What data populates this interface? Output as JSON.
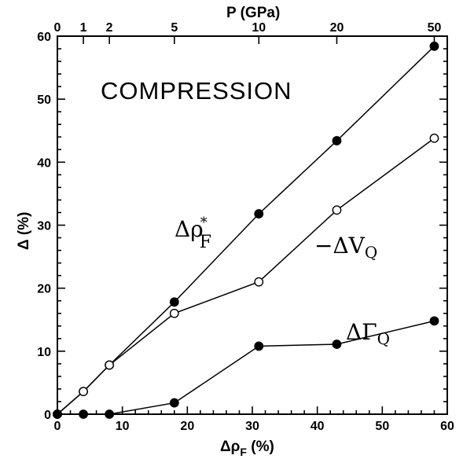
{
  "chart_data": {
    "type": "line",
    "title": "COMPRESSION",
    "xlabel": "Δρ_F (%)",
    "ylabel": "Δ (%)",
    "top_axis_label": "P (GPa)",
    "xlim": [
      0,
      60
    ],
    "ylim": [
      0,
      60
    ],
    "x_ticks": [
      0,
      10,
      20,
      30,
      40,
      50,
      60
    ],
    "y_ticks": [
      0,
      10,
      20,
      30,
      40,
      50,
      60
    ],
    "top_ticks": [
      {
        "label": "0",
        "x": 0
      },
      {
        "label": "1",
        "x": 4
      },
      {
        "label": "2",
        "x": 8
      },
      {
        "label": "5",
        "x": 18
      },
      {
        "label": "10",
        "x": 31
      },
      {
        "label": "20",
        "x": 43
      },
      {
        "label": "50",
        "x": 58
      }
    ],
    "grid": false,
    "series": [
      {
        "name": "Δρ*F",
        "marker": "filled",
        "x": [
          0,
          4,
          8,
          18,
          31,
          43,
          58
        ],
        "y": [
          0,
          3.6,
          7.8,
          17.8,
          31.8,
          43.4,
          58.4
        ]
      },
      {
        "name": "−ΔVQ",
        "marker": "open",
        "x": [
          0,
          4,
          8,
          18,
          31,
          43,
          58
        ],
        "y": [
          0,
          3.6,
          7.8,
          16,
          21,
          32.4,
          43.8
        ]
      },
      {
        "name": "ΔΓQ",
        "marker": "filled",
        "x": [
          0,
          4,
          8,
          18,
          31,
          43,
          58
        ],
        "y": [
          0,
          0,
          0,
          1.8,
          10.8,
          11.1,
          14.8
        ]
      }
    ]
  }
}
